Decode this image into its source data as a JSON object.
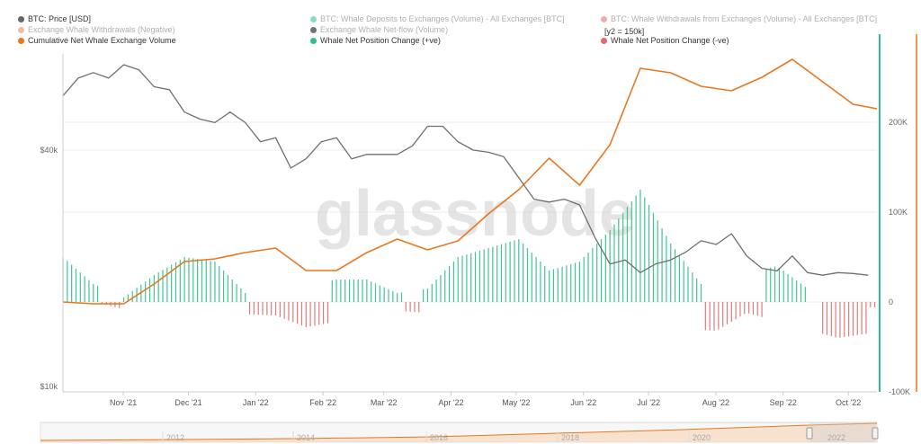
{
  "legend": [
    {
      "label": "BTC: Price [USD]",
      "color": "#666666",
      "faded": false
    },
    {
      "label": "BTC: Whale Deposits to Exchanges (Volume) - All Exchanges [BTC]",
      "color": "#2cbf87",
      "faded": true
    },
    {
      "label": "BTC: Whale Withdrawals from Exchanges (Volume) - All Exchanges [BTC]",
      "color": "#e06b6b",
      "faded": true
    },
    {
      "label": "Exchange Whale Withdrawals (Negative)",
      "color": "#e8864a",
      "faded": true
    },
    {
      "label": "Exchange Whale Net-flow (Volume)",
      "color": "#000000",
      "faded": true
    },
    {
      "label": "Cumulative Net Whale Exchange Volume",
      "color": "#e8771f",
      "faded": false
    },
    {
      "label": "Whale Net Position Change (+ve)",
      "color": "#2cbf87",
      "faded": false
    },
    {
      "label": "Whale Net Position Change (-ve)",
      "color": "#e06b6b",
      "faded": false
    }
  ],
  "annotation": "[y2 = 150k]",
  "watermark": "glassnode",
  "colors": {
    "price": "#6f6f6f",
    "cumulative": "#e8771f",
    "positive": "#2cbf87",
    "negative": "#e06b6b",
    "right_axis": "#2cbf87",
    "far_right_axis": "#e8771f"
  },
  "chart_data": {
    "type": "line",
    "x_ticks": [
      "Nov '21",
      "Dec '21",
      "Jan '22",
      "Feb '22",
      "Mar '22",
      "Apr '22",
      "May '22",
      "Jun '22",
      "Jul '22",
      "Aug '22",
      "Sep '22",
      "Oct '22"
    ],
    "x_range": [
      "2021-10-10",
      "2022-10-20"
    ],
    "y_left": {
      "scale": "log",
      "ticks": [
        "$40k",
        "$10k"
      ],
      "tick_values": [
        40000,
        10000
      ],
      "range": [
        10000,
        80000
      ]
    },
    "y_right": {
      "ticks": [
        "200K",
        "100K",
        "0",
        "-100K"
      ],
      "tick_values": [
        200000,
        100000,
        0,
        -100000
      ],
      "range": [
        -100000,
        300000
      ]
    },
    "grid": true,
    "series": [
      {
        "name": "BTC: Price [USD]",
        "axis": "left",
        "points": [
          [
            "2021-10-10",
            55000
          ],
          [
            "2021-10-17",
            61000
          ],
          [
            "2021-10-24",
            63000
          ],
          [
            "2021-10-31",
            61000
          ],
          [
            "2021-11-07",
            66000
          ],
          [
            "2021-11-14",
            64000
          ],
          [
            "2021-11-21",
            58000
          ],
          [
            "2021-11-28",
            57000
          ],
          [
            "2021-12-05",
            50000
          ],
          [
            "2021-12-12",
            48000
          ],
          [
            "2021-12-19",
            47000
          ],
          [
            "2021-12-26",
            50000
          ],
          [
            "2022-01-02",
            47000
          ],
          [
            "2022-01-09",
            42000
          ],
          [
            "2022-01-16",
            43000
          ],
          [
            "2022-01-23",
            36000
          ],
          [
            "2022-01-30",
            38000
          ],
          [
            "2022-02-06",
            42000
          ],
          [
            "2022-02-13",
            43000
          ],
          [
            "2022-02-20",
            38000
          ],
          [
            "2022-02-27",
            39000
          ],
          [
            "2022-03-06",
            39000
          ],
          [
            "2022-03-13",
            39000
          ],
          [
            "2022-03-20",
            41000
          ],
          [
            "2022-03-27",
            46000
          ],
          [
            "2022-04-03",
            46000
          ],
          [
            "2022-04-10",
            42000
          ],
          [
            "2022-04-17",
            40000
          ],
          [
            "2022-04-24",
            39500
          ],
          [
            "2022-05-01",
            38500
          ],
          [
            "2022-05-08",
            34000
          ],
          [
            "2022-05-15",
            30000
          ],
          [
            "2022-05-22",
            29500
          ],
          [
            "2022-05-29",
            30000
          ],
          [
            "2022-06-05",
            29000
          ],
          [
            "2022-06-12",
            24000
          ],
          [
            "2022-06-19",
            20500
          ],
          [
            "2022-06-26",
            21000
          ],
          [
            "2022-07-03",
            19500
          ],
          [
            "2022-07-10",
            20500
          ],
          [
            "2022-07-17",
            21000
          ],
          [
            "2022-07-24",
            22000
          ],
          [
            "2022-07-31",
            23500
          ],
          [
            "2022-08-07",
            23000
          ],
          [
            "2022-08-14",
            24500
          ],
          [
            "2022-08-21",
            21500
          ],
          [
            "2022-08-28",
            20000
          ],
          [
            "2022-09-04",
            19700
          ],
          [
            "2022-09-11",
            21500
          ],
          [
            "2022-09-18",
            19500
          ],
          [
            "2022-09-25",
            19200
          ],
          [
            "2022-10-02",
            19500
          ],
          [
            "2022-10-09",
            19400
          ],
          [
            "2022-10-16",
            19200
          ]
        ]
      },
      {
        "name": "Cumulative Net Whale Exchange Volume",
        "axis": "right",
        "points": [
          [
            "2021-10-10",
            0
          ],
          [
            "2021-10-24",
            -2000
          ],
          [
            "2021-11-07",
            -2000
          ],
          [
            "2021-11-21",
            20000
          ],
          [
            "2021-12-05",
            45000
          ],
          [
            "2021-12-19",
            48000
          ],
          [
            "2022-01-02",
            55000
          ],
          [
            "2022-01-16",
            60000
          ],
          [
            "2022-01-30",
            35000
          ],
          [
            "2022-02-13",
            35000
          ],
          [
            "2022-02-27",
            55000
          ],
          [
            "2022-03-13",
            70000
          ],
          [
            "2022-03-27",
            58000
          ],
          [
            "2022-04-10",
            68000
          ],
          [
            "2022-04-24",
            98000
          ],
          [
            "2022-05-08",
            125000
          ],
          [
            "2022-05-22",
            160000
          ],
          [
            "2022-06-05",
            130000
          ],
          [
            "2022-06-19",
            175000
          ],
          [
            "2022-07-03",
            260000
          ],
          [
            "2022-07-17",
            255000
          ],
          [
            "2022-07-31",
            240000
          ],
          [
            "2022-08-14",
            235000
          ],
          [
            "2022-08-28",
            250000
          ],
          [
            "2022-09-11",
            270000
          ],
          [
            "2022-09-25",
            245000
          ],
          [
            "2022-10-09",
            220000
          ],
          [
            "2022-10-20",
            215000
          ]
        ]
      },
      {
        "name": "Whale Net Position Change (+ve)",
        "axis": "right",
        "points": [
          [
            "2021-10-10",
            50000
          ],
          [
            "2021-10-24",
            20000
          ],
          [
            "2021-11-07",
            5000
          ],
          [
            "2021-11-21",
            30000
          ],
          [
            "2021-12-05",
            50000
          ],
          [
            "2021-12-19",
            45000
          ],
          [
            "2022-01-02",
            10000
          ],
          [
            "2022-02-13",
            25000
          ],
          [
            "2022-02-27",
            25000
          ],
          [
            "2022-03-13",
            10000
          ],
          [
            "2022-03-27",
            15000
          ],
          [
            "2022-04-10",
            50000
          ],
          [
            "2022-04-24",
            60000
          ],
          [
            "2022-05-08",
            70000
          ],
          [
            "2022-05-22",
            35000
          ],
          [
            "2022-06-05",
            45000
          ],
          [
            "2022-06-19",
            80000
          ],
          [
            "2022-07-03",
            125000
          ],
          [
            "2022-07-17",
            65000
          ],
          [
            "2022-07-31",
            20000
          ],
          [
            "2022-09-04",
            40000
          ],
          [
            "2022-09-18",
            15000
          ]
        ]
      },
      {
        "name": "Whale Net Position Change (-ve)",
        "axis": "right",
        "points": [
          [
            "2021-10-24",
            0
          ],
          [
            "2021-11-07",
            -8000
          ],
          [
            "2022-01-16",
            -15000
          ],
          [
            "2022-01-30",
            -28000
          ],
          [
            "2022-03-13",
            -10000
          ],
          [
            "2022-08-07",
            -32000
          ],
          [
            "2022-08-21",
            -12000
          ],
          [
            "2022-10-02",
            -40000
          ],
          [
            "2022-10-16",
            -35000
          ]
        ]
      }
    ],
    "navigator": {
      "x_ticks": [
        "2012",
        "2014",
        "2016",
        "2018",
        "2020",
        "2022"
      ]
    }
  }
}
